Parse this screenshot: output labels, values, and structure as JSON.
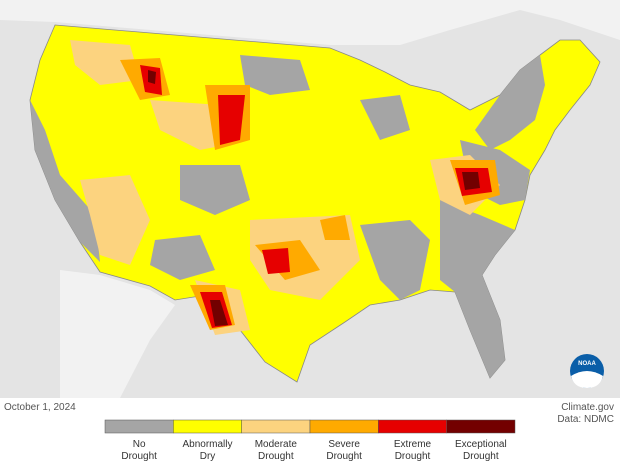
{
  "footer": {
    "date": "October 1, 2024",
    "source": "Climate.gov",
    "data_credit": "Data: NDMC",
    "logo": "NOAA"
  },
  "legend": {
    "items": [
      {
        "lines": [
          "No",
          "Drought"
        ],
        "color": "#a5a5a5"
      },
      {
        "lines": [
          "Abnormally",
          "Dry"
        ],
        "color": "#ffff00"
      },
      {
        "lines": [
          "Moderate",
          "Drought"
        ],
        "color": "#fcd37f"
      },
      {
        "lines": [
          "Severe",
          "Drought"
        ],
        "color": "#ffaa00"
      },
      {
        "lines": [
          "Extreme",
          "Drought"
        ],
        "color": "#e60000"
      },
      {
        "lines": [
          "Exceptional",
          "Drought"
        ],
        "color": "#730000"
      }
    ]
  }
}
